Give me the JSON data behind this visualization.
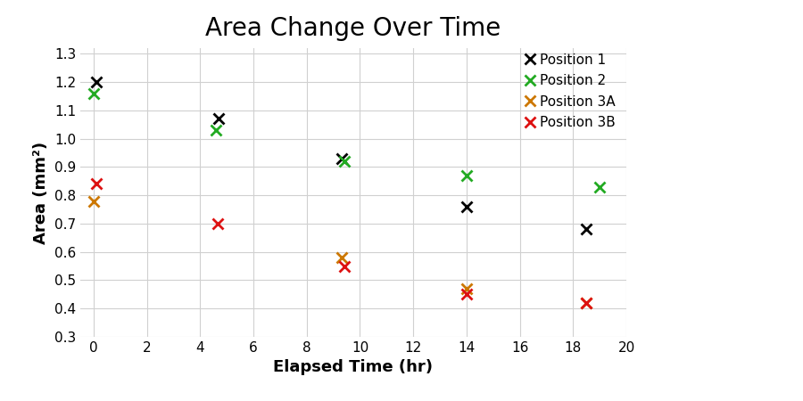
{
  "title": "Area Change Over Time",
  "xlabel": "Elapsed Time (hr)",
  "ylabel": "Area (mm²)",
  "xlim": [
    -0.5,
    20
  ],
  "ylim": [
    0.3,
    1.32
  ],
  "xticks": [
    0,
    2,
    4,
    6,
    8,
    10,
    12,
    14,
    16,
    18,
    20
  ],
  "yticks": [
    0.3,
    0.4,
    0.5,
    0.6,
    0.7,
    0.8,
    0.9,
    1.0,
    1.1,
    1.2,
    1.3
  ],
  "series": [
    {
      "label": "Position 1",
      "color": "#000000",
      "x": [
        0.1,
        4.7,
        9.3,
        14.0,
        18.5
      ],
      "y": [
        1.2,
        1.07,
        0.93,
        0.76,
        0.68
      ]
    },
    {
      "label": "Position 2",
      "color": "#22aa22",
      "x": [
        0.0,
        4.6,
        9.4,
        14.0,
        19.0
      ],
      "y": [
        1.16,
        1.03,
        0.92,
        0.87,
        0.83
      ]
    },
    {
      "label": "Position 3A",
      "color": "#cc7700",
      "x": [
        0.0,
        9.3,
        14.0,
        18.5
      ],
      "y": [
        0.78,
        0.58,
        0.47,
        0.42
      ]
    },
    {
      "label": "Position 3B",
      "color": "#dd1111",
      "x": [
        0.1,
        4.65,
        9.4,
        14.0,
        18.5
      ],
      "y": [
        0.84,
        0.7,
        0.55,
        0.45,
        0.42
      ]
    }
  ],
  "background_color": "#ffffff",
  "title_fontsize": 20,
  "label_fontsize": 13,
  "tick_fontsize": 11,
  "marker": "x",
  "markersize": 9,
  "markeredgewidth": 2.0,
  "legend_fontsize": 11
}
